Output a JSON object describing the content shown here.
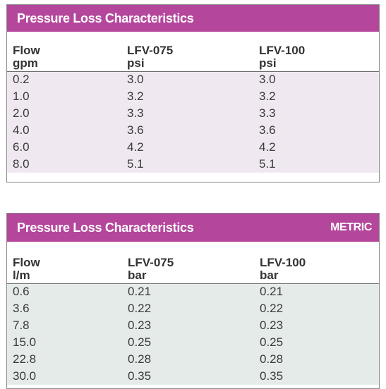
{
  "tables": [
    {
      "title": "Pressure Loss Characteristics",
      "tag": "",
      "headers": [
        {
          "name": "Flow",
          "unit": "gpm"
        },
        {
          "name": "LFV-075",
          "unit": "psi"
        },
        {
          "name": "LFV-100",
          "unit": "psi"
        }
      ],
      "rows": [
        [
          "0.2",
          "3.0",
          "3.0"
        ],
        [
          "1.0",
          "3.2",
          "3.2"
        ],
        [
          "2.0",
          "3.3",
          "3.3"
        ],
        [
          "4.0",
          "3.6",
          "3.6"
        ],
        [
          "6.0",
          "4.2",
          "4.2"
        ],
        [
          "8.0",
          "5.1",
          "5.1"
        ]
      ]
    },
    {
      "title": "Pressure Loss Characteristics",
      "tag": "METRIC",
      "headers": [
        {
          "name": "Flow",
          "unit": "l/m"
        },
        {
          "name": "LFV-075",
          "unit": "bar"
        },
        {
          "name": "LFV-100",
          "unit": "bar"
        }
      ],
      "rows": [
        [
          "0.6",
          "0.21",
          "0.21"
        ],
        [
          "3.6",
          "0.22",
          "0.22"
        ],
        [
          "7.8",
          "0.23",
          "0.23"
        ],
        [
          "15.0",
          "0.25",
          "0.25"
        ],
        [
          "22.8",
          "0.28",
          "0.28"
        ],
        [
          "30.0",
          "0.35",
          "0.35"
        ]
      ]
    }
  ],
  "colors": {
    "banner": "#b4479c",
    "imperial_band": "#f0e8f0",
    "metric_band": "#e5ebe9"
  }
}
